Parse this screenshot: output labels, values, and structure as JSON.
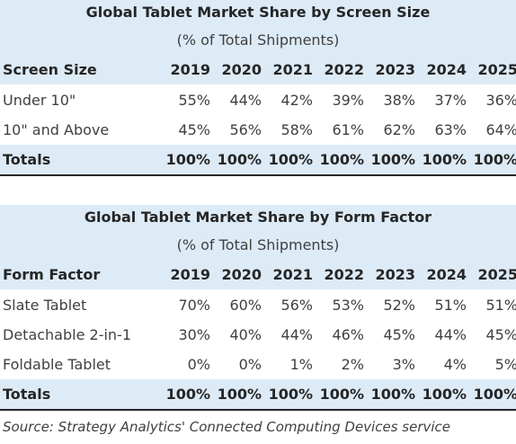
{
  "tables": [
    {
      "title": "Global Tablet Market Share by Screen Size",
      "subtitle": "(% of Total Shipments)",
      "header_label": "Screen Size",
      "years": [
        "2019",
        "2020",
        "2021",
        "2022",
        "2023",
        "2024",
        "2025"
      ],
      "rows": [
        {
          "label": "Under 10\"",
          "values": [
            "55%",
            "44%",
            "42%",
            "39%",
            "38%",
            "37%",
            "36%"
          ]
        },
        {
          "label": "10\" and Above",
          "values": [
            "45%",
            "56%",
            "58%",
            "61%",
            "62%",
            "63%",
            "64%"
          ]
        }
      ],
      "totals": {
        "label": "Totals",
        "values": [
          "100%",
          "100%",
          "100%",
          "100%",
          "100%",
          "100%",
          "100%"
        ]
      }
    },
    {
      "title": "Global Tablet Market Share by Form Factor",
      "subtitle": "(% of Total Shipments)",
      "header_label": "Form Factor",
      "years": [
        "2019",
        "2020",
        "2021",
        "2022",
        "2023",
        "2024",
        "2025"
      ],
      "rows": [
        {
          "label": "Slate Tablet",
          "values": [
            "70%",
            "60%",
            "56%",
            "53%",
            "52%",
            "51%",
            "51%"
          ]
        },
        {
          "label": "Detachable 2-in-1",
          "values": [
            "30%",
            "40%",
            "44%",
            "46%",
            "45%",
            "44%",
            "45%"
          ]
        },
        {
          "label": "Foldable Tablet",
          "values": [
            "0%",
            "0%",
            "1%",
            "2%",
            "3%",
            "4%",
            "5%"
          ]
        }
      ],
      "totals": {
        "label": "Totals",
        "values": [
          "100%",
          "100%",
          "100%",
          "100%",
          "100%",
          "100%",
          "100%"
        ]
      }
    }
  ],
  "source": "Source: Strategy Analytics' Connected Computing Devices service"
}
